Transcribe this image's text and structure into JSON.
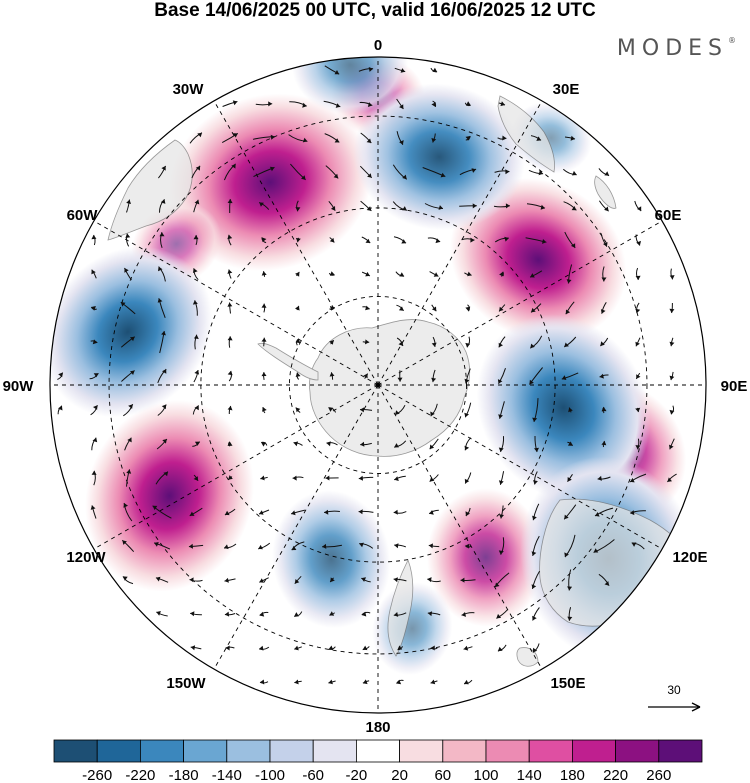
{
  "title": "Base 14/06/2025 00 UTC, valid 16/06/2025 12 UTC",
  "logo": {
    "text": "MODES",
    "mark": "®"
  },
  "map": {
    "projection": "south-polar-stereographic",
    "longitude_labels": [
      {
        "lon": 0,
        "text": "0"
      },
      {
        "lon": 30,
        "text": "30E"
      },
      {
        "lon": 60,
        "text": "60E"
      },
      {
        "lon": 90,
        "text": "90E"
      },
      {
        "lon": 120,
        "text": "120E"
      },
      {
        "lon": 150,
        "text": "150E"
      },
      {
        "lon": 180,
        "text": "180"
      },
      {
        "lon": -150,
        "text": "150W"
      },
      {
        "lon": -120,
        "text": "120W"
      },
      {
        "lon": -90,
        "text": "90W"
      },
      {
        "lon": -60,
        "text": "60W"
      },
      {
        "lon": -30,
        "text": "30W"
      }
    ],
    "land_color": "#e6e6e6",
    "anomaly_centers": [
      {
        "lon": -28,
        "colat": 0.7,
        "value": 260
      },
      {
        "lon": 52,
        "colat": 0.62,
        "value": 220
      },
      {
        "lon": -118,
        "colat": 0.72,
        "value": 240
      },
      {
        "lon": 148,
        "colat": 0.62,
        "value": 140
      },
      {
        "lon": 105,
        "colat": 0.78,
        "value": 140
      },
      {
        "lon": -55,
        "colat": 0.75,
        "value": 60
      },
      {
        "lon": 0,
        "colat": 0.88,
        "value": 60
      },
      {
        "lon": 15,
        "colat": 0.72,
        "value": -200
      },
      {
        "lon": -78,
        "colat": 0.78,
        "value": -220
      },
      {
        "lon": 97,
        "colat": 0.57,
        "value": -240
      },
      {
        "lon": 127,
        "colat": 0.88,
        "value": -260
      },
      {
        "lon": -165,
        "colat": 0.55,
        "value": -140
      },
      {
        "lon": -5,
        "colat": 0.98,
        "value": -100
      },
      {
        "lon": 172,
        "colat": 0.75,
        "value": -60
      },
      {
        "lon": 35,
        "colat": 0.92,
        "value": -40
      }
    ]
  },
  "reference_vector": {
    "label": "30"
  },
  "colorbar": {
    "ticks": [
      "-260",
      "-220",
      "-180",
      "-140",
      "-100",
      "-60",
      "-20",
      "20",
      "60",
      "100",
      "140",
      "180",
      "220",
      "260"
    ],
    "colors": [
      "#1d4f74",
      "#1f6699",
      "#3b87bd",
      "#6aa6d2",
      "#9bbfe0",
      "#c4d1ea",
      "#e4e4f1",
      "#ffffff",
      "#f8dde1",
      "#f3b8c6",
      "#ec8bb3",
      "#df4fa2",
      "#bf1f8f",
      "#8c1181",
      "#5d0f78"
    ]
  }
}
